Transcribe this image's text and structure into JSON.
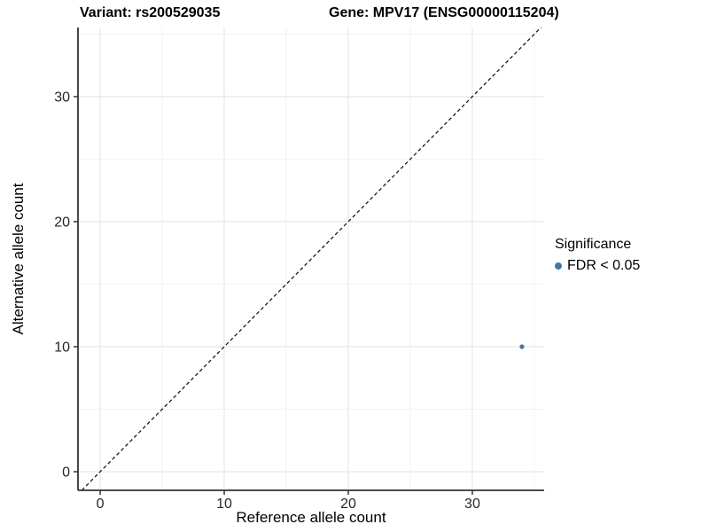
{
  "titles": {
    "variant": "Variant: rs200529035",
    "gene": "Gene: MPV17 (ENSG00000115204)"
  },
  "legend": {
    "title": "Significance",
    "items": [
      {
        "label": "FDR < 0.05",
        "color": "#4575a9"
      }
    ]
  },
  "chart_data": {
    "type": "scatter",
    "xlabel": "Reference allele count",
    "ylabel": "Alternative allele count",
    "x_ticks": [
      0,
      10,
      20,
      30
    ],
    "y_ticks": [
      0,
      10,
      20,
      30
    ],
    "x_minor_gridlines": [
      5,
      15,
      25,
      35
    ],
    "y_minor_gridlines": [
      5,
      15,
      25,
      35
    ],
    "xlim": [
      -1.79,
      35.79
    ],
    "ylim": [
      -1.49,
      35.53
    ],
    "grid": true,
    "legend_position": "right",
    "identity_line": {
      "slope": 1,
      "intercept": 0,
      "style": "dashed"
    },
    "series": [
      {
        "name": "FDR < 0.05",
        "color": "#4575a9",
        "points": [
          {
            "x": 34,
            "y": 10
          }
        ]
      }
    ]
  },
  "colors": {
    "grid_major": "#e6e6e6",
    "grid_minor": "#f2f2f2",
    "axis_line": "#333333",
    "tick_mark": "#333333",
    "dashed_line": "#1a1a1a"
  }
}
